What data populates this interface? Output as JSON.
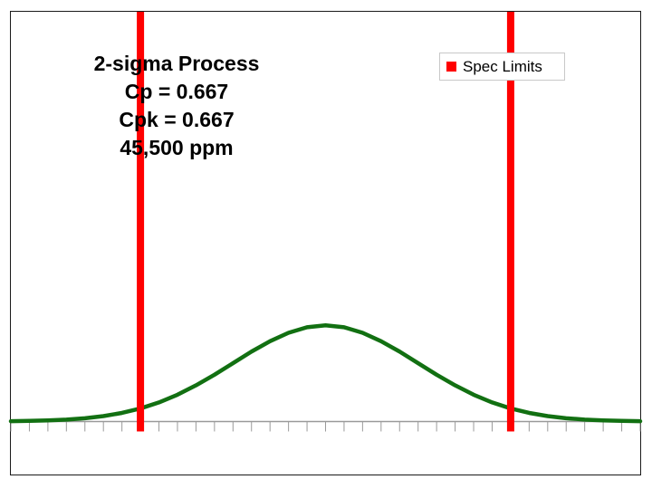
{
  "chart_data": {
    "type": "line",
    "title": "",
    "xlabel": "",
    "ylabel": "",
    "xlim": [
      -3.4,
      3.4
    ],
    "ylim": [
      -0.22,
      1.7
    ],
    "grid": false,
    "legend_position": "top-right",
    "x_ticks": [
      -3.4,
      -3.2,
      -3.0,
      -2.8,
      -2.6,
      -2.4,
      -2.2,
      -2.0,
      -1.8,
      -1.6,
      -1.4,
      -1.2,
      -1.0,
      -0.8,
      -0.6,
      -0.4,
      -0.2,
      0,
      0.2,
      0.4,
      0.6,
      0.8,
      1.0,
      1.2,
      1.4,
      1.6,
      1.8,
      2.0,
      2.2,
      2.4,
      2.6,
      2.8,
      3.0,
      3.2,
      3.4
    ],
    "series": [
      {
        "type": "line",
        "color": "#127012",
        "x": [
          -3.4,
          -3.2,
          -3.0,
          -2.8,
          -2.6,
          -2.4,
          -2.2,
          -2.0,
          -1.8,
          -1.6,
          -1.4,
          -1.2,
          -1.0,
          -0.8,
          -0.6,
          -0.4,
          -0.2,
          0,
          0.2,
          0.4,
          0.6,
          0.8,
          1.0,
          1.2,
          1.4,
          1.6,
          1.8,
          2.0,
          2.2,
          2.4,
          2.6,
          2.8,
          3.0,
          3.2,
          3.4
        ],
        "y": [
          0.0012,
          0.0024,
          0.0044,
          0.0079,
          0.0136,
          0.0224,
          0.0355,
          0.054,
          0.079,
          0.111,
          0.15,
          0.194,
          0.242,
          0.29,
          0.333,
          0.368,
          0.391,
          0.399,
          0.391,
          0.368,
          0.333,
          0.29,
          0.242,
          0.194,
          0.15,
          0.111,
          0.079,
          0.054,
          0.0355,
          0.0224,
          0.0136,
          0.0079,
          0.0044,
          0.0024,
          0.0012
        ]
      },
      {
        "name": "Spec Limits",
        "type": "vline",
        "color": "#ff0000",
        "x": [
          -2.0,
          2.0
        ]
      }
    ]
  },
  "annotation": {
    "line1": "2-sigma Process",
    "line2": "Cp = 0.667",
    "line3": "Cpk = 0.667",
    "line4": "45,500 ppm"
  }
}
